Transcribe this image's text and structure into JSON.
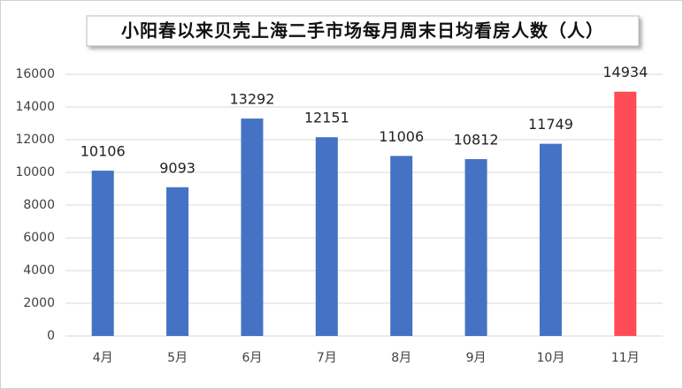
{
  "chart_data": {
    "type": "bar",
    "title": "小阳春以来贝壳上海二手市场每月周末日均看房人数（人）",
    "categories": [
      "4月",
      "5月",
      "6月",
      "7月",
      "8月",
      "9月",
      "10月",
      "11月"
    ],
    "values": [
      10106,
      9093,
      13292,
      12151,
      11006,
      10812,
      11749,
      14934
    ],
    "colors": [
      "#4472c4",
      "#4472c4",
      "#4472c4",
      "#4472c4",
      "#4472c4",
      "#4472c4",
      "#4472c4",
      "#ff4b55"
    ],
    "ylim": [
      0,
      16000
    ],
    "yticks": [
      0,
      2000,
      4000,
      6000,
      8000,
      10000,
      12000,
      14000,
      16000
    ],
    "grid": true
  }
}
